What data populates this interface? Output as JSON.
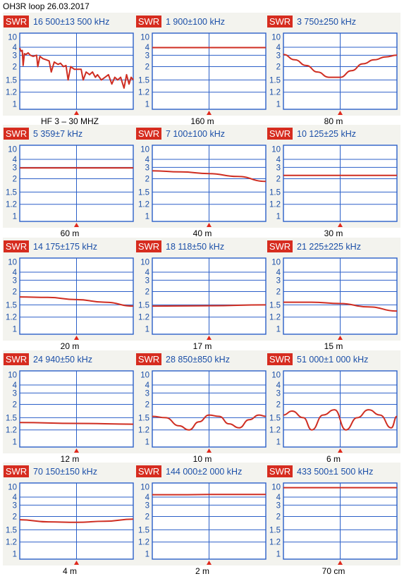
{
  "title": "OH3R loop 26.03.2017",
  "colors": {
    "badge": "#d62c1f",
    "badge_text": "#ffffff",
    "header_text": "#1b4fa8",
    "grid": "#2b5fc8",
    "trace": "#cf2e22",
    "screen_bg": "#f3f3ee",
    "marker": "#e0281c"
  },
  "chart_data": [
    {
      "type": "line",
      "caption": "HF 3 – 30 MHZ",
      "badge": "SWR",
      "header": "16 500±13 500 kHz",
      "yticks": [
        "10",
        "4",
        "3",
        "2",
        "1.5",
        "1.2",
        "1"
      ],
      "x": [
        3000,
        3300,
        3600,
        3800,
        4100,
        4500,
        5000,
        5500,
        6200,
        7000,
        7300,
        7800,
        8500,
        9300,
        10000,
        10500,
        11200,
        12100,
        12700,
        13400,
        14000,
        14500,
        15100,
        16000,
        16800,
        17600,
        18100,
        18800,
        19600,
        20300,
        21000,
        21500,
        22400,
        23300,
        24100,
        24900,
        25600,
        26300,
        27000,
        27800,
        28400,
        29000,
        29500,
        30000
      ],
      "y": [
        3.9,
        3.5,
        3.6,
        2.1,
        3.2,
        3.1,
        3.3,
        3.0,
        2.9,
        3.0,
        2.0,
        2.9,
        2.7,
        2.6,
        2.5,
        1.8,
        2.4,
        2.2,
        2.3,
        2.0,
        2.1,
        1.5,
        2.0,
        1.9,
        1.9,
        1.9,
        1.5,
        1.8,
        1.7,
        1.8,
        1.6,
        1.7,
        1.5,
        1.6,
        1.7,
        1.4,
        1.6,
        1.5,
        1.6,
        1.3,
        1.7,
        1.4,
        1.6,
        1.5
      ]
    },
    {
      "type": "line",
      "caption": "160 m",
      "badge": "SWR",
      "header": "1 900±100 kHz",
      "yticks": [
        "10",
        "4",
        "3",
        "2",
        "1.5",
        "1.2",
        "1"
      ],
      "x": [
        1800,
        1850,
        1900,
        1950,
        2000
      ],
      "y": [
        3.95,
        3.95,
        3.95,
        3.95,
        3.95
      ]
    },
    {
      "type": "line",
      "caption": "80 m",
      "badge": "SWR",
      "header": "3 750±250 kHz",
      "yticks": [
        "10",
        "4",
        "3",
        "2",
        "1.5",
        "1.2",
        "1"
      ],
      "x": [
        3500,
        3550,
        3600,
        3650,
        3700,
        3750,
        3800,
        3850,
        3900,
        3950,
        4000
      ],
      "y": [
        3.1,
        2.6,
        2.1,
        1.8,
        1.6,
        1.6,
        1.85,
        2.25,
        2.6,
        2.85,
        3.0
      ]
    },
    {
      "type": "line",
      "caption": "60 m",
      "badge": "SWR",
      "header": "5 359±7 kHz",
      "yticks": [
        "10",
        "4",
        "3",
        "2",
        "1.5",
        "1.2",
        "1"
      ],
      "x": [
        5352,
        5359,
        5366
      ],
      "y": [
        2.95,
        2.95,
        2.95
      ]
    },
    {
      "type": "line",
      "caption": "40 m",
      "badge": "SWR",
      "header": "7 100±100 kHz",
      "yticks": [
        "10",
        "4",
        "3",
        "2",
        "1.5",
        "1.2",
        "1"
      ],
      "x": [
        7000,
        7050,
        7100,
        7150,
        7200
      ],
      "y": [
        2.7,
        2.6,
        2.45,
        2.2,
        1.9
      ]
    },
    {
      "type": "line",
      "caption": "30 m",
      "badge": "SWR",
      "header": "10 125±25 kHz",
      "yticks": [
        "10",
        "4",
        "3",
        "2",
        "1.5",
        "1.2",
        "1"
      ],
      "x": [
        10100,
        10125,
        10150
      ],
      "y": [
        2.3,
        2.3,
        2.3
      ]
    },
    {
      "type": "line",
      "caption": "20 m",
      "badge": "SWR",
      "header": "14 175±175 kHz",
      "yticks": [
        "10",
        "4",
        "3",
        "2",
        "1.5",
        "1.2",
        "1"
      ],
      "x": [
        14000,
        14087,
        14175,
        14262,
        14350
      ],
      "y": [
        1.8,
        1.78,
        1.7,
        1.6,
        1.47
      ]
    },
    {
      "type": "line",
      "caption": "17 m",
      "badge": "SWR",
      "header": "18 118±50 kHz",
      "yticks": [
        "10",
        "4",
        "3",
        "2",
        "1.5",
        "1.2",
        "1"
      ],
      "x": [
        18068,
        18118,
        18168
      ],
      "y": [
        1.47,
        1.48,
        1.5
      ]
    },
    {
      "type": "line",
      "caption": "15 m",
      "badge": "SWR",
      "header": "21 225±225 kHz",
      "yticks": [
        "10",
        "4",
        "3",
        "2",
        "1.5",
        "1.2",
        "1"
      ],
      "x": [
        21000,
        21112,
        21225,
        21337,
        21450
      ],
      "y": [
        1.6,
        1.6,
        1.55,
        1.45,
        1.35
      ]
    },
    {
      "type": "line",
      "caption": "12 m",
      "badge": "SWR",
      "header": "24 940±50 kHz",
      "yticks": [
        "10",
        "4",
        "3",
        "2",
        "1.5",
        "1.2",
        "1"
      ],
      "x": [
        24890,
        24940,
        24990
      ],
      "y": [
        1.38,
        1.36,
        1.34
      ]
    },
    {
      "type": "line",
      "caption": "10 m",
      "badge": "SWR",
      "header": "28 850±850 kHz",
      "yticks": [
        "10",
        "4",
        "3",
        "2",
        "1.5",
        "1.2",
        "1"
      ],
      "x": [
        28000,
        28200,
        28400,
        28550,
        28700,
        28850,
        29000,
        29150,
        29300,
        29450,
        29600,
        29700
      ],
      "y": [
        1.55,
        1.5,
        1.3,
        1.2,
        1.4,
        1.6,
        1.55,
        1.35,
        1.25,
        1.45,
        1.6,
        1.55
      ]
    },
    {
      "type": "line",
      "caption": "6 m",
      "badge": "SWR",
      "header": "51 000±1 000 kHz",
      "yticks": [
        "10",
        "4",
        "3",
        "2",
        "1.5",
        "1.2",
        "1"
      ],
      "x": [
        50000,
        50150,
        50350,
        50500,
        50700,
        50900,
        51100,
        51300,
        51500,
        51700,
        51900,
        52000
      ],
      "y": [
        1.6,
        1.75,
        1.5,
        1.2,
        1.6,
        1.8,
        1.2,
        1.5,
        1.8,
        1.6,
        1.25,
        1.55
      ]
    },
    {
      "type": "line",
      "caption": "4 m",
      "badge": "SWR",
      "header": "70 150±150 kHz",
      "yticks": [
        "10",
        "4",
        "3",
        "2",
        "1.5",
        "1.2",
        "1"
      ],
      "x": [
        70000,
        70075,
        70150,
        70225,
        70300
      ],
      "y": [
        1.88,
        1.8,
        1.78,
        1.82,
        1.9
      ]
    },
    {
      "type": "line",
      "caption": "2 m",
      "badge": "SWR",
      "header": "144 000±2 000 kHz",
      "yticks": [
        "10",
        "4",
        "3",
        "2",
        "1.5",
        "1.2",
        "1"
      ],
      "x": [
        142000,
        143000,
        144000,
        145000,
        146000
      ],
      "y": [
        5.4,
        5.4,
        5.5,
        5.5,
        5.5
      ]
    },
    {
      "type": "line",
      "caption": "70 cm",
      "badge": "SWR",
      "header": "433 500±1 500 kHz",
      "yticks": [
        "10",
        "4",
        "3",
        "2",
        "1.5",
        "1.2",
        "1"
      ],
      "x": [
        432000,
        433500,
        435000
      ],
      "y": [
        9.5,
        9.5,
        9.5
      ]
    }
  ]
}
